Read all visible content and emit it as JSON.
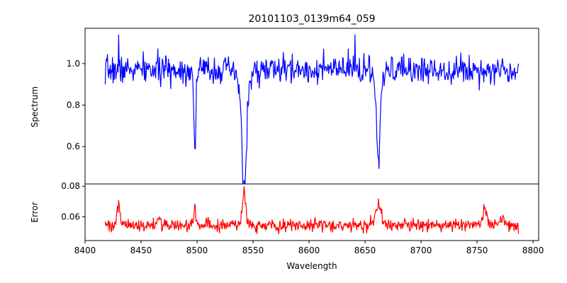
{
  "chart_data": [
    {
      "type": "line",
      "panel": "spectrum",
      "title": "20101103_0139m64_059",
      "xlabel": "",
      "ylabel": "Spectrum",
      "xlim": [
        8400,
        8805
      ],
      "ylim": [
        0.42,
        1.17
      ],
      "yticks": [
        0.6,
        0.8,
        1.0
      ],
      "ytick_labels": [
        "0.6",
        "0.8",
        "1.0"
      ],
      "grid": false,
      "series": [
        {
          "color": "#0000ff",
          "x_start": 8418,
          "x_end": 8787,
          "baseline": 0.97,
          "noise": 0.055,
          "features": [
            {
              "center": 8498.0,
              "depth": 0.39,
              "width": 0.9
            },
            {
              "center": 8542.0,
              "depth": 0.52,
              "width": 1.8,
              "wing_depth": 0.1,
              "wing_width": 5.0
            },
            {
              "center": 8662.0,
              "depth": 0.4,
              "width": 1.4,
              "wing_depth": 0.08,
              "wing_width": 4.0
            }
          ],
          "key_points": [
            [
              8418,
              0.9
            ],
            [
              8430,
              1.14
            ],
            [
              8498,
              0.59
            ],
            [
              8542,
              0.44
            ],
            [
              8641,
              1.14
            ],
            [
              8662,
              0.55
            ],
            [
              8787,
              1.0
            ]
          ]
        }
      ]
    },
    {
      "type": "line",
      "panel": "error",
      "xlabel": "Wavelength",
      "ylabel": "Error",
      "xlim": [
        8400,
        8805
      ],
      "ylim": [
        0.0445,
        0.0815
      ],
      "xticks": [
        8400,
        8450,
        8500,
        8550,
        8600,
        8650,
        8700,
        8750,
        8800
      ],
      "xtick_labels": [
        "8400",
        "8450",
        "8500",
        "8550",
        "8600",
        "8650",
        "8700",
        "8750",
        "8800"
      ],
      "yticks": [
        0.06,
        0.08
      ],
      "ytick_labels": [
        "0.06",
        "0.08"
      ],
      "grid": false,
      "series": [
        {
          "color": "#ff0000",
          "x_start": 8418,
          "x_end": 8787,
          "baseline": 0.0545,
          "noise": 0.0035,
          "features": [
            {
              "center": 8430.0,
              "height": 0.012,
              "width": 1.2
            },
            {
              "center": 8466.0,
              "height": 0.005,
              "width": 1.5
            },
            {
              "center": 8498.0,
              "height": 0.01,
              "width": 0.9
            },
            {
              "center": 8542.0,
              "height": 0.021,
              "width": 1.6
            },
            {
              "center": 8662.0,
              "height": 0.012,
              "width": 3.0
            },
            {
              "center": 8757.0,
              "height": 0.008,
              "width": 2.0
            },
            {
              "center": 8772.0,
              "height": 0.006,
              "width": 2.0
            }
          ],
          "key_points": [
            [
              8418,
              0.057
            ],
            [
              8430,
              0.071
            ],
            [
              8498,
              0.068
            ],
            [
              8542,
              0.08
            ],
            [
              8662,
              0.072
            ],
            [
              8787,
              0.049
            ]
          ]
        }
      ]
    }
  ]
}
